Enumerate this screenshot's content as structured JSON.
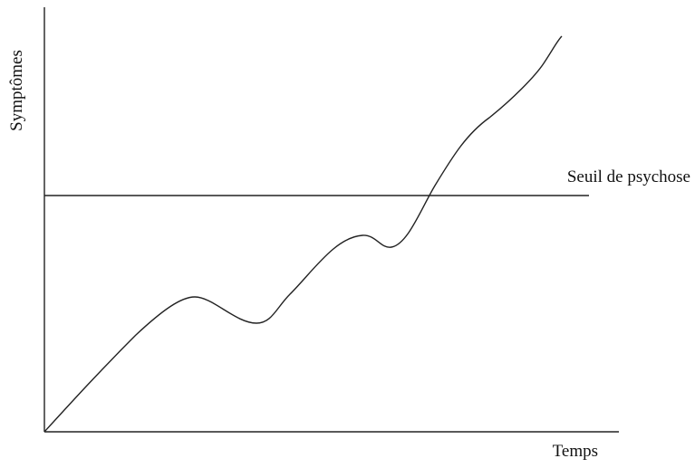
{
  "y_axis": {
    "label": "Symptômes"
  },
  "x_axis": {
    "label": "Temps"
  },
  "threshold": {
    "label": "Seuil de psychose"
  }
}
